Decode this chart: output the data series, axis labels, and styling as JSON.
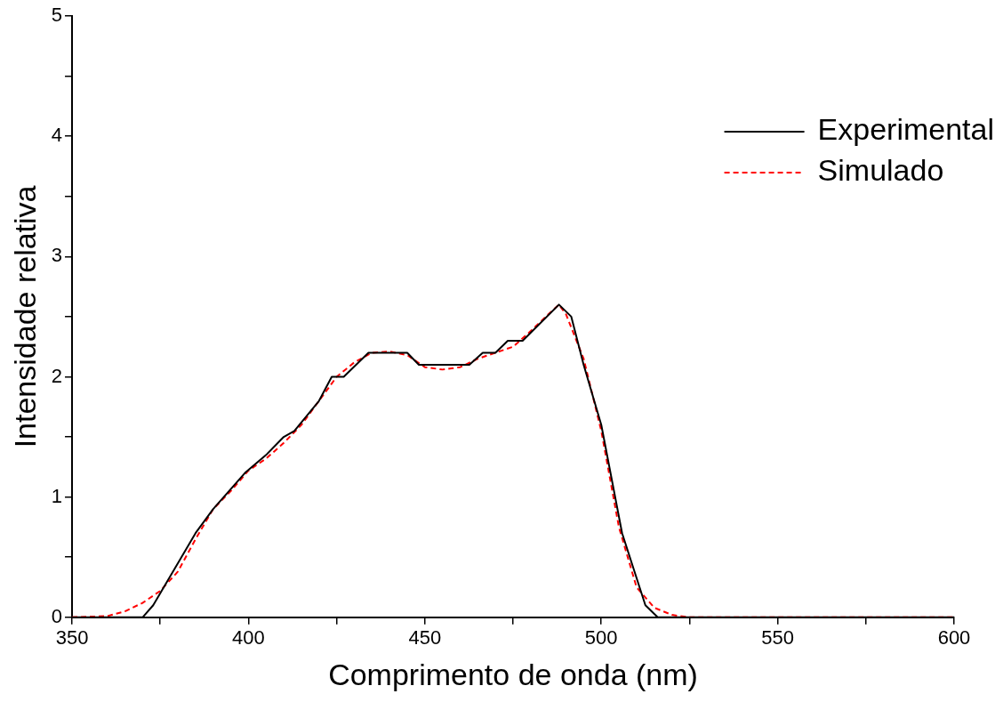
{
  "chart_data": {
    "type": "line",
    "xlabel": "Comprimento de onda (nm)",
    "ylabel": "Intensidade relativa",
    "xlim": [
      350,
      600
    ],
    "xticks": [
      350,
      {
        "value": 375,
        "label": null
      },
      400,
      {
        "value": 425,
        "label": null
      },
      450,
      {
        "value": 475,
        "label": null
      },
      500,
      {
        "value": 525,
        "label": null
      },
      550,
      {
        "value": 575,
        "label": null
      },
      600
    ],
    "ylim": [
      0,
      5
    ],
    "yticks": [
      0,
      {
        "value": 0.5,
        "label": null
      },
      1,
      {
        "value": 1.5,
        "label": null
      },
      2,
      {
        "value": 2.5,
        "label": null
      },
      3,
      {
        "value": 3.5,
        "label": null
      },
      4,
      {
        "value": 4.5,
        "label": null
      },
      5
    ],
    "grid": false,
    "legend": "top right",
    "marker": "none",
    "series": [
      {
        "name": "Experimental",
        "color": "#000000",
        "line_style": "solid",
        "x": [
          350,
          370,
          373,
          381,
          385,
          390,
          393,
          399,
          405,
          410,
          413,
          420,
          423.6,
          427,
          434,
          445,
          448.3,
          462.6,
          466.4,
          470,
          473.5,
          477.7,
          488,
          491.5,
          495,
          500,
          505.9,
          512.5,
          516,
          600
        ],
        "values": [
          0,
          0,
          0.1,
          0.5,
          0.7,
          0.9,
          1.0,
          1.2,
          1.35,
          1.5,
          1.55,
          1.8,
          2.0,
          2.0,
          2.2,
          2.2,
          2.1,
          2.1,
          2.2,
          2.2,
          2.3,
          2.3,
          2.6,
          2.5,
          2.1,
          1.6,
          0.7,
          0.1,
          0,
          0
        ]
      },
      {
        "name": "Simulado",
        "color": "#ff0000",
        "line_style": "dashed",
        "x": [
          350,
          360,
          365,
          370,
          375,
          380,
          385,
          390,
          395,
          400,
          405,
          410,
          415,
          420,
          425,
          430,
          435,
          440,
          445,
          450,
          455,
          460,
          465,
          470,
          475,
          480,
          485,
          488,
          490,
          495,
          500,
          505,
          510,
          515,
          520,
          525,
          600
        ],
        "values": [
          0,
          0.01,
          0.05,
          0.12,
          0.22,
          0.38,
          0.65,
          0.9,
          1.05,
          1.22,
          1.32,
          1.45,
          1.6,
          1.8,
          2.0,
          2.12,
          2.2,
          2.21,
          2.18,
          2.08,
          2.06,
          2.08,
          2.15,
          2.2,
          2.25,
          2.38,
          2.52,
          2.6,
          2.52,
          2.15,
          1.55,
          0.75,
          0.25,
          0.08,
          0.02,
          0,
          0
        ]
      }
    ]
  }
}
